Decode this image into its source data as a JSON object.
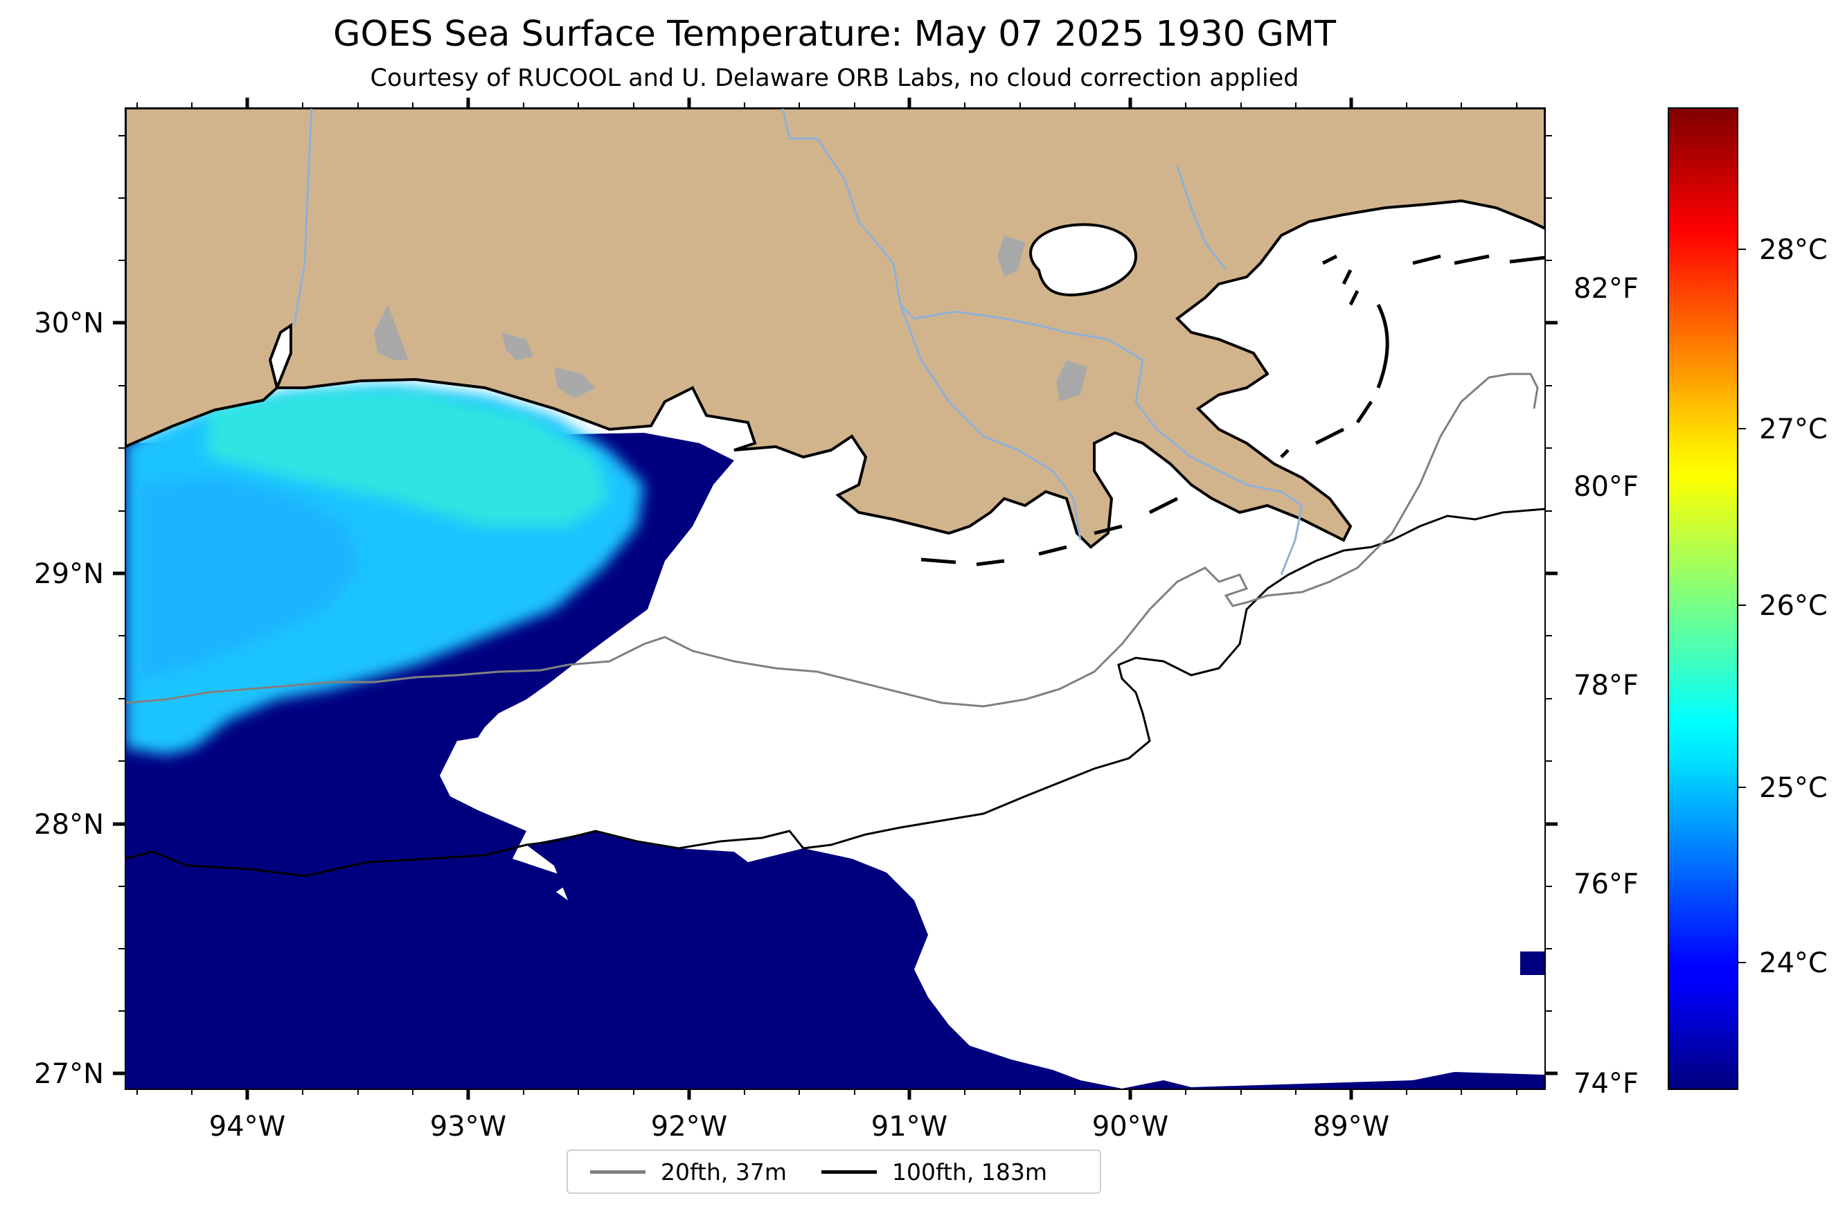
{
  "title": "GOES Sea Surface Temperature: May 07 2025 1930 GMT",
  "subtitle": "Courtesy of RUCOOL and U. Delaware ORB Labs, no cloud correction applied",
  "map": {
    "lon_range": [
      -94.55,
      -88.13
    ],
    "lat_range": [
      26.93,
      30.85
    ],
    "lon_ticks": [
      "94°W",
      "93°W",
      "92°W",
      "91°W",
      "90°W",
      "89°W"
    ],
    "lat_ticks": [
      "27°N",
      "28°N",
      "29°N",
      "30°N"
    ],
    "colors": {
      "land": "#d2b48c",
      "lake": "#a9a9a9",
      "river": "#8fb0d8",
      "no_data": "#ffffff",
      "cold_water": "#00007f"
    }
  },
  "colorbar": {
    "colormap": "jet",
    "range_c": [
      23.15,
      28.85
    ],
    "celsius_ticks": [
      "24°C",
      "25°C",
      "26°C",
      "27°C",
      "28°C"
    ],
    "fahrenheit_ticks": [
      "74°F",
      "76°F",
      "78°F",
      "80°F",
      "82°F"
    ]
  },
  "legend": {
    "position": "bottom-center",
    "items": [
      {
        "label": "20fth, 37m",
        "color": "#808080"
      },
      {
        "label": "100fth, 183m",
        "color": "#000000"
      }
    ]
  }
}
